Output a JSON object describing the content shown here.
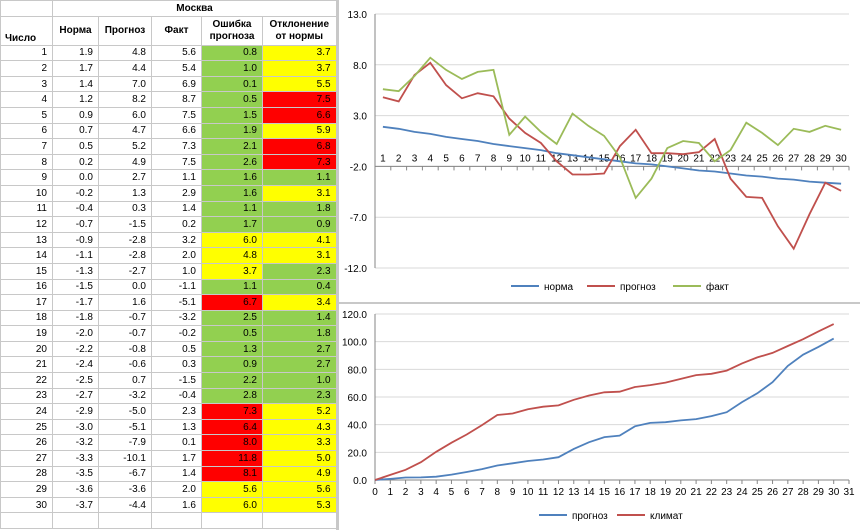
{
  "table": {
    "city": "Москва",
    "headers": {
      "day": "Число",
      "norm": "Норма",
      "forecast": "Прогноз",
      "fact": "Факт",
      "error": "Ошибка прогноза",
      "deviation": "Отклонение от нормы"
    },
    "rows": [
      {
        "day": "1",
        "norm": "1.9",
        "forecast": "4.8",
        "fact": "5.6",
        "error": "0.8",
        "dev": "3.7",
        "error_color": "green",
        "dev_color": "yellow"
      },
      {
        "day": "2",
        "norm": "1.7",
        "forecast": "4.4",
        "fact": "5.4",
        "error": "1.0",
        "dev": "3.7",
        "error_color": "green",
        "dev_color": "yellow"
      },
      {
        "day": "3",
        "norm": "1.4",
        "forecast": "7.0",
        "fact": "6.9",
        "error": "0.1",
        "dev": "5.5",
        "error_color": "green",
        "dev_color": "yellow"
      },
      {
        "day": "4",
        "norm": "1.2",
        "forecast": "8.2",
        "fact": "8.7",
        "error": "0.5",
        "dev": "7.5",
        "error_color": "green",
        "dev_color": "red"
      },
      {
        "day": "5",
        "norm": "0.9",
        "forecast": "6.0",
        "fact": "7.5",
        "error": "1.5",
        "dev": "6.6",
        "error_color": "green",
        "dev_color": "red"
      },
      {
        "day": "6",
        "norm": "0.7",
        "forecast": "4.7",
        "fact": "6.6",
        "error": "1.9",
        "dev": "5.9",
        "error_color": "green",
        "dev_color": "yellow"
      },
      {
        "day": "7",
        "norm": "0.5",
        "forecast": "5.2",
        "fact": "7.3",
        "error": "2.1",
        "dev": "6.8",
        "error_color": "green",
        "dev_color": "red"
      },
      {
        "day": "8",
        "norm": "0.2",
        "forecast": "4.9",
        "fact": "7.5",
        "error": "2.6",
        "dev": "7.3",
        "error_color": "green",
        "dev_color": "red"
      },
      {
        "day": "9",
        "norm": "0.0",
        "forecast": "2.7",
        "fact": "1.1",
        "error": "1.6",
        "dev": "1.1",
        "error_color": "green",
        "dev_color": "green"
      },
      {
        "day": "10",
        "norm": "-0.2",
        "forecast": "1.3",
        "fact": "2.9",
        "error": "1.6",
        "dev": "3.1",
        "error_color": "green",
        "dev_color": "yellow"
      },
      {
        "day": "11",
        "norm": "-0.4",
        "forecast": "0.3",
        "fact": "1.4",
        "error": "1.1",
        "dev": "1.8",
        "error_color": "green",
        "dev_color": "green"
      },
      {
        "day": "12",
        "norm": "-0.7",
        "forecast": "-1.5",
        "fact": "0.2",
        "error": "1.7",
        "dev": "0.9",
        "error_color": "green",
        "dev_color": "green"
      },
      {
        "day": "13",
        "norm": "-0.9",
        "forecast": "-2.8",
        "fact": "3.2",
        "error": "6.0",
        "dev": "4.1",
        "error_color": "yellow",
        "dev_color": "yellow"
      },
      {
        "day": "14",
        "norm": "-1.1",
        "forecast": "-2.8",
        "fact": "2.0",
        "error": "4.8",
        "dev": "3.1",
        "error_color": "yellow",
        "dev_color": "yellow"
      },
      {
        "day": "15",
        "norm": "-1.3",
        "forecast": "-2.7",
        "fact": "1.0",
        "error": "3.7",
        "dev": "2.3",
        "error_color": "yellow",
        "dev_color": "green"
      },
      {
        "day": "16",
        "norm": "-1.5",
        "forecast": "0.0",
        "fact": "-1.1",
        "error": "1.1",
        "dev": "0.4",
        "error_color": "green",
        "dev_color": "green"
      },
      {
        "day": "17",
        "norm": "-1.7",
        "forecast": "1.6",
        "fact": "-5.1",
        "error": "6.7",
        "dev": "3.4",
        "error_color": "red",
        "dev_color": "yellow"
      },
      {
        "day": "18",
        "norm": "-1.8",
        "forecast": "-0.7",
        "fact": "-3.2",
        "error": "2.5",
        "dev": "1.4",
        "error_color": "green",
        "dev_color": "green"
      },
      {
        "day": "19",
        "norm": "-2.0",
        "forecast": "-0.7",
        "fact": "-0.2",
        "error": "0.5",
        "dev": "1.8",
        "error_color": "green",
        "dev_color": "green"
      },
      {
        "day": "20",
        "norm": "-2.2",
        "forecast": "-0.8",
        "fact": "0.5",
        "error": "1.3",
        "dev": "2.7",
        "error_color": "green",
        "dev_color": "green"
      },
      {
        "day": "21",
        "norm": "-2.4",
        "forecast": "-0.6",
        "fact": "0.3",
        "error": "0.9",
        "dev": "2.7",
        "error_color": "green",
        "dev_color": "green"
      },
      {
        "day": "22",
        "norm": "-2.5",
        "forecast": "0.7",
        "fact": "-1.5",
        "error": "2.2",
        "dev": "1.0",
        "error_color": "green",
        "dev_color": "green"
      },
      {
        "day": "23",
        "norm": "-2.7",
        "forecast": "-3.2",
        "fact": "-0.4",
        "error": "2.8",
        "dev": "2.3",
        "error_color": "green",
        "dev_color": "green"
      },
      {
        "day": "24",
        "norm": "-2.9",
        "forecast": "-5.0",
        "fact": "2.3",
        "error": "7.3",
        "dev": "5.2",
        "error_color": "red",
        "dev_color": "yellow"
      },
      {
        "day": "25",
        "norm": "-3.0",
        "forecast": "-5.1",
        "fact": "1.3",
        "error": "6.4",
        "dev": "4.3",
        "error_color": "red",
        "dev_color": "yellow"
      },
      {
        "day": "26",
        "norm": "-3.2",
        "forecast": "-7.9",
        "fact": "0.1",
        "error": "8.0",
        "dev": "3.3",
        "error_color": "red",
        "dev_color": "yellow"
      },
      {
        "day": "27",
        "norm": "-3.3",
        "forecast": "-10.1",
        "fact": "1.7",
        "error": "11.8",
        "dev": "5.0",
        "error_color": "red",
        "dev_color": "yellow"
      },
      {
        "day": "28",
        "norm": "-3.5",
        "forecast": "-6.7",
        "fact": "1.4",
        "error": "8.1",
        "dev": "4.9",
        "error_color": "red",
        "dev_color": "yellow"
      },
      {
        "day": "29",
        "norm": "-3.6",
        "forecast": "-3.6",
        "fact": "2.0",
        "error": "5.6",
        "dev": "5.6",
        "error_color": "yellow",
        "dev_color": "yellow"
      },
      {
        "day": "30",
        "norm": "-3.7",
        "forecast": "-4.4",
        "fact": "1.6",
        "error": "6.0",
        "dev": "5.3",
        "error_color": "yellow",
        "dev_color": "yellow"
      }
    ]
  },
  "colors": {
    "green": "#92d050",
    "yellow": "#ffff00",
    "red": "#ff0000",
    "norm": "#4f81bd",
    "forecast": "#c0504d",
    "fact": "#9bbb59",
    "climate": "#c0504d",
    "cum_forecast": "#4f81bd"
  },
  "chart_data": [
    {
      "type": "line",
      "title": "",
      "xlabel": "",
      "ylabel": "",
      "x": [
        1,
        2,
        3,
        4,
        5,
        6,
        7,
        8,
        9,
        10,
        11,
        12,
        13,
        14,
        15,
        16,
        17,
        18,
        19,
        20,
        21,
        22,
        23,
        24,
        25,
        26,
        27,
        28,
        29,
        30
      ],
      "x_ticks": [
        "1",
        "2",
        "3",
        "4",
        "5",
        "6",
        "7",
        "8",
        "9",
        "10",
        "11",
        "12",
        "13",
        "14",
        "15",
        "16",
        "17",
        "18",
        "19",
        "20",
        "21",
        "22",
        "23",
        "24",
        "25",
        "26",
        "27",
        "28",
        "29",
        "30"
      ],
      "ylim": [
        -12,
        13
      ],
      "y_ticks": [
        "13.0",
        "8.0",
        "3.0",
        "-2.0",
        "-7.0",
        "-12.0"
      ],
      "y_tick_values": [
        13,
        8,
        3,
        -2,
        -7,
        -12
      ],
      "x_axis_at": -2,
      "grid": true,
      "legend_position": "bottom",
      "series": [
        {
          "name": "норма",
          "color_key": "norm",
          "values": [
            1.9,
            1.7,
            1.4,
            1.2,
            0.9,
            0.7,
            0.5,
            0.2,
            0.0,
            -0.2,
            -0.4,
            -0.7,
            -0.9,
            -1.1,
            -1.3,
            -1.5,
            -1.7,
            -1.8,
            -2.0,
            -2.2,
            -2.4,
            -2.5,
            -2.7,
            -2.9,
            -3.0,
            -3.2,
            -3.3,
            -3.5,
            -3.6,
            -3.7
          ]
        },
        {
          "name": "прогноз",
          "color_key": "forecast",
          "values": [
            4.8,
            4.4,
            7.0,
            8.2,
            6.0,
            4.7,
            5.2,
            4.9,
            2.7,
            1.3,
            0.3,
            -1.5,
            -2.8,
            -2.8,
            -2.7,
            0.0,
            1.6,
            -0.7,
            -0.7,
            -0.8,
            -0.6,
            0.7,
            -3.2,
            -5.0,
            -5.1,
            -7.9,
            -10.1,
            -6.7,
            -3.6,
            -4.4
          ]
        },
        {
          "name": "факт",
          "color_key": "fact",
          "values": [
            5.6,
            5.4,
            6.9,
            8.7,
            7.5,
            6.6,
            7.3,
            7.5,
            1.1,
            2.9,
            1.4,
            0.2,
            3.2,
            2.0,
            1.0,
            -1.1,
            -5.1,
            -3.2,
            -0.2,
            0.5,
            0.3,
            -1.5,
            -0.4,
            2.3,
            1.3,
            0.1,
            1.7,
            1.4,
            2.0,
            1.6
          ]
        }
      ]
    },
    {
      "type": "line",
      "title": "",
      "xlabel": "",
      "ylabel": "",
      "x": [
        0,
        1,
        2,
        3,
        4,
        5,
        6,
        7,
        8,
        9,
        10,
        11,
        12,
        13,
        14,
        15,
        16,
        17,
        18,
        19,
        20,
        21,
        22,
        23,
        24,
        25,
        26,
        27,
        28,
        29,
        30
      ],
      "x_ticks": [
        "0",
        "1",
        "2",
        "3",
        "4",
        "5",
        "6",
        "7",
        "8",
        "9",
        "10",
        "11",
        "12",
        "13",
        "14",
        "15",
        "16",
        "17",
        "18",
        "19",
        "20",
        "21",
        "22",
        "23",
        "24",
        "25",
        "26",
        "27",
        "28",
        "29",
        "30",
        "31"
      ],
      "xlim": [
        0,
        31
      ],
      "ylim": [
        0,
        120
      ],
      "y_ticks": [
        "0.0",
        "20.0",
        "40.0",
        "60.0",
        "80.0",
        "100.0",
        "120.0"
      ],
      "y_tick_values": [
        0,
        20,
        40,
        60,
        80,
        100,
        120
      ],
      "grid": true,
      "legend_position": "bottom",
      "series": [
        {
          "name": "прогноз",
          "color_key": "cum_forecast",
          "values": [
            0,
            0.8,
            1.8,
            1.9,
            2.4,
            3.9,
            5.8,
            7.9,
            10.5,
            12.1,
            13.7,
            14.8,
            16.5,
            22.5,
            27.3,
            31.0,
            32.1,
            38.8,
            41.3,
            41.8,
            43.1,
            44.0,
            46.2,
            49.0,
            56.3,
            62.7,
            70.7,
            82.5,
            90.6,
            96.2,
            102.2
          ]
        },
        {
          "name": "климат",
          "color_key": "climate",
          "values": [
            0,
            3.7,
            7.4,
            12.9,
            20.4,
            27.0,
            32.9,
            39.7,
            47.0,
            48.1,
            51.2,
            53.0,
            53.9,
            58.0,
            61.1,
            63.4,
            63.8,
            67.2,
            68.6,
            70.4,
            73.1,
            75.8,
            76.8,
            79.1,
            84.3,
            88.6,
            91.9,
            96.9,
            101.8,
            107.4,
            112.7
          ]
        }
      ]
    }
  ]
}
